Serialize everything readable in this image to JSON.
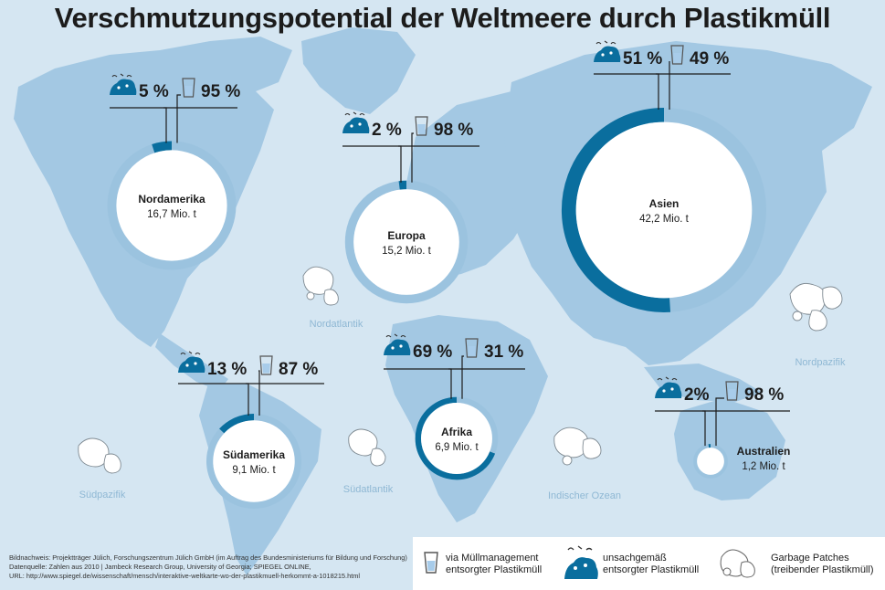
{
  "title": "Verschmutzungspotential der Weltmeere durch Plastikmüll",
  "colors": {
    "background": "#d5e6f2",
    "land": "#a3c8e3",
    "unmanaged": "#0a6e9e",
    "managed": "#9bc3df",
    "ocean_label": "#8fb8d4"
  },
  "oceans": [
    "Nordatlantik",
    "Nordpazifik",
    "Südpazifik",
    "Südatlantik",
    "Indischer Ozean"
  ],
  "chart_data": {
    "type": "donut",
    "title": "Verschmutzungspotential der Weltmeere durch Plastikmüll",
    "unit": "Mio. t",
    "series_names": [
      "unsachgemäß entsorgter Plastikmüll",
      "via Müllmanagement entsorgter Plastikmüll"
    ],
    "regions": [
      {
        "name": "Nordamerika",
        "total": 16.7,
        "total_label": "16,7 Mio. t",
        "unmanaged_pct": 5,
        "managed_pct": 95,
        "unmanaged_label": "5 %",
        "managed_label": "95 %"
      },
      {
        "name": "Europa",
        "total": 15.2,
        "total_label": "15,2 Mio. t",
        "unmanaged_pct": 2,
        "managed_pct": 98,
        "unmanaged_label": "2 %",
        "managed_label": "98 %"
      },
      {
        "name": "Asien",
        "total": 42.2,
        "total_label": "42,2 Mio. t",
        "unmanaged_pct": 51,
        "managed_pct": 49,
        "unmanaged_label": "51 %",
        "managed_label": "49 %"
      },
      {
        "name": "Südamerika",
        "total": 9.1,
        "total_label": "9,1 Mio. t",
        "unmanaged_pct": 13,
        "managed_pct": 87,
        "unmanaged_label": "13 %",
        "managed_label": "87 %"
      },
      {
        "name": "Afrika",
        "total": 6.9,
        "total_label": "6,9 Mio. t",
        "unmanaged_pct": 69,
        "managed_pct": 31,
        "unmanaged_label": "69 %",
        "managed_label": "31 %"
      },
      {
        "name": "Australien",
        "total": 1.2,
        "total_label": "1,2 Mio. t",
        "unmanaged_pct": 2,
        "managed_pct": 98,
        "unmanaged_label": "2%",
        "managed_label": "98 %"
      }
    ]
  },
  "source": {
    "line1": "Bildnachweis: Projektträger Jülich, Forschungszentrum Jülich GmbH (im Auftrag des Bundesministeriums für Bildung und Forschung)",
    "line2": "Datenquelle: Zahlen aus 2010 | Jambeck Research Group, University of Georgia; SPIEGEL ONLINE,",
    "line3": "URL: http://www.spiegel.de/wissenschaft/mensch/interaktive-weltkarte-wo-der-plastikmuell-herkommt-a-1018215.html"
  },
  "legend": {
    "managed_line1": "via Müllmanagement",
    "managed_line2": "entsorgter Plastikmüll",
    "unmanaged_line1": "unsachgemäß",
    "unmanaged_line2": "entsorgter Plastikmüll",
    "patches_line1": "Garbage Patches",
    "patches_line2": "(treibender Plastikmüll)"
  }
}
